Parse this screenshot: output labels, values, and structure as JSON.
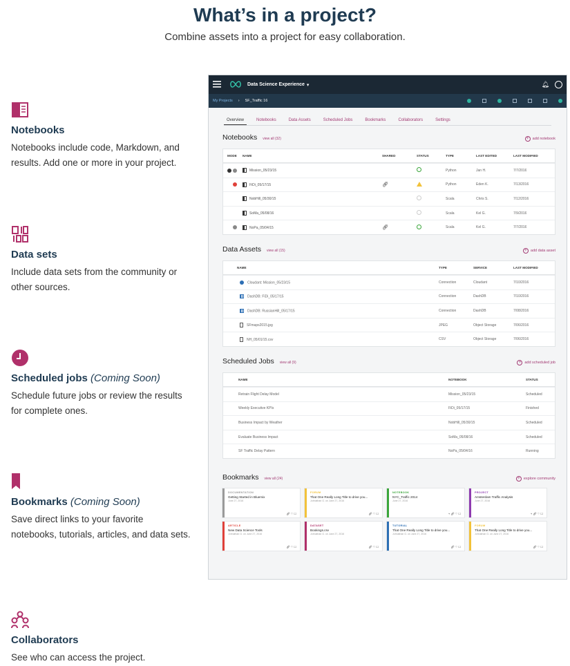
{
  "header": {
    "title": "What’s in a project?",
    "subtitle": "Combine assets into a project for easy collaboration."
  },
  "features": [
    {
      "icon": "book-icon",
      "title": "Notebooks",
      "note": "",
      "desc": "Notebooks include code, Markdown, and results. Add one or more in your project."
    },
    {
      "icon": "dataset-icon",
      "title": "Data sets",
      "note": "",
      "desc": "Include data sets from the community or other sources."
    },
    {
      "icon": "clock-icon",
      "title": "Scheduled jobs",
      "note": "(Coming Soon)",
      "desc": "Schedule future jobs or review the results for complete ones."
    },
    {
      "icon": "bookmark-icon",
      "title": "Bookmarks",
      "note": "(Coming Soon)",
      "desc": "Save direct links to your favorite notebooks, tutorials, articles, and data sets."
    },
    {
      "icon": "collaborators-icon",
      "title": "Collaborators",
      "note": "",
      "desc": "See who can access the project."
    }
  ],
  "app": {
    "brand": "Data Science Experience",
    "breadcrumb": {
      "root": "My Projects",
      "current": "SF_Traffic 16"
    },
    "tabs": [
      "Overview",
      "Notebooks",
      "Data Assets",
      "Scheduled Jobs",
      "Bookmarks",
      "Collaborators",
      "Settings"
    ],
    "notebooks": {
      "title": "Notebooks",
      "view_all": "view all (32)",
      "add": "add notebook",
      "columns": [
        "MODE",
        "NAME",
        "SHARED",
        "STATUS",
        "TYPE",
        "LAST EDITED",
        "LAST MODIFIED"
      ],
      "rows": [
        {
          "name": "Mission_05/23/15",
          "shared": "",
          "status": "ok",
          "type": "Python",
          "edited": "Jan H.",
          "modified": "7/7/2016"
        },
        {
          "name": "FiDi_05/17/15",
          "shared": "link",
          "status": "warn",
          "type": "Python",
          "edited": "Eden K.",
          "modified": "7/13/2016"
        },
        {
          "name": "NobHill_05/30/15",
          "shared": "",
          "status": "none",
          "type": "Scala",
          "edited": "Chris S.",
          "modified": "7/12/2016"
        },
        {
          "name": "SoMa_05/08/16",
          "shared": "",
          "status": "none",
          "type": "Scala",
          "edited": "Kel G.",
          "modified": "7/9/2016"
        },
        {
          "name": "NoPa_05/04/15",
          "shared": "link",
          "status": "ok",
          "type": "Scala",
          "edited": "Kel G.",
          "modified": "7/7/2016"
        }
      ]
    },
    "data_assets": {
      "title": "Data Assets",
      "view_all": "view all (15)",
      "add": "add data asset",
      "columns": [
        "NAME",
        "TYPE",
        "SERVICE",
        "LAST MODIFIED"
      ],
      "rows": [
        {
          "icon": "cloudant",
          "name": "Cloudant: Mission_05/23/15",
          "type": "Connection",
          "service": "Cloudant",
          "modified": "7/10/2016"
        },
        {
          "icon": "db",
          "name": "DashDB: FiDi_05/17/15",
          "type": "Connection",
          "service": "DashDB",
          "modified": "7/10/2016"
        },
        {
          "icon": "db",
          "name": "DashDB: RussianHill_05/17/15",
          "type": "Connection",
          "service": "DashDB",
          "modified": "7/08/2016"
        },
        {
          "icon": "file",
          "name": "SFmaps2015.jpg",
          "type": "JPEG",
          "service": "Object Storage",
          "modified": "7/06/2016"
        },
        {
          "icon": "file",
          "name": "NH_05/01/15.csv",
          "type": "CSV",
          "service": "Object Storage",
          "modified": "7/06/2016"
        }
      ]
    },
    "jobs": {
      "title": "Scheduled Jobs",
      "view_all": "view all (9)",
      "add": "add scheduled job",
      "columns": [
        "NAME",
        "NOTEBOOK",
        "STATUS"
      ],
      "rows": [
        {
          "name": "Retrain Flight Delay Model",
          "notebook": "Mission_05/23/15",
          "status": "Scheduled"
        },
        {
          "name": "Weekly Executive KPIs",
          "notebook": "FiDi_05/17/15",
          "status": "Finished"
        },
        {
          "name": "Business Impact by Weather",
          "notebook": "NobHill_05/30/15",
          "status": "Scheduled"
        },
        {
          "name": "Evaluate Business Impact",
          "notebook": "SoMa_05/08/16",
          "status": "Scheduled"
        },
        {
          "name": "SF Traffic Delay Pattern",
          "notebook": "NoPa_05/04/16",
          "status": "Running"
        }
      ]
    },
    "bookmarks": {
      "title": "Bookmarks",
      "view_all": "view all (24)",
      "add": "explore community",
      "cards": [
        {
          "type": "DOCUMENTATION",
          "color": "#9a9a9a",
          "title": "Getting Started in Bluemix",
          "meta": "June 27, 2016"
        },
        {
          "type": "FORUM",
          "color": "#f2c23a",
          "title": "That One Really Long Title to drive you...",
          "meta": "Johnathan G. on June 27, 2016"
        },
        {
          "type": "NOTEBOOK",
          "color": "#3aa53a",
          "title": "NYC_Traffic 2014",
          "meta": "June 27, 2016"
        },
        {
          "type": "PROJECT",
          "color": "#8e3bb0",
          "title": "Amsterdam Traffic Analysis",
          "meta": "June 27, 2016"
        },
        {
          "type": "ARTICLE",
          "color": "#e0413a",
          "title": "New Data Science Tools",
          "meta": "Johnathan G. on June 27, 2016"
        },
        {
          "type": "DATASET",
          "color": "#b0306a",
          "title": "Bookings.csv",
          "meta": "Johnathan G. on June 27, 2016"
        },
        {
          "type": "TUTORIAL",
          "color": "#2d6fb4",
          "title": "That One Really Long Title to drive you...",
          "meta": "Johnathan G. on June 27, 2016"
        },
        {
          "type": "FORUM",
          "color": "#f2c23a",
          "title": "That One Really Long Title to drive you...",
          "meta": "Johnathan G. on June 27, 2016"
        }
      ]
    }
  }
}
